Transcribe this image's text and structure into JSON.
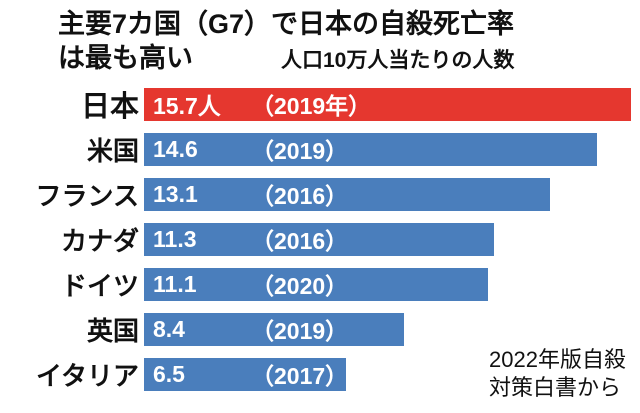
{
  "header": {
    "title_line1": "主要7カ国（G7）で日本の自殺死亡率",
    "title_line2": "は最も高い",
    "subtitle": "人口10万人当たりの人数"
  },
  "source": {
    "line1": "2022年版自殺",
    "line2": "対策白書から"
  },
  "colors": {
    "highlight": "#e5372f",
    "bar": "#4a7ebc",
    "bar_text": "#ffffff",
    "text": "#111111",
    "background": "#ffffff"
  },
  "chart_data": {
    "type": "bar",
    "orientation": "horizontal",
    "title": "主要7カ国（G7）で日本の自殺死亡率は最も高い",
    "unit_note": "人口10万人当たりの人数",
    "categories": [
      "日本",
      "米国",
      "フランス",
      "カナダ",
      "ドイツ",
      "英国",
      "イタリア"
    ],
    "values": [
      15.7,
      14.6,
      13.1,
      11.3,
      11.1,
      8.4,
      6.5
    ],
    "value_labels": [
      "15.7人",
      "14.6",
      "13.1",
      "11.3",
      "11.1",
      "8.4",
      "6.5"
    ],
    "year_labels": [
      "（2019年）",
      "（2019）",
      "（2016）",
      "（2016）",
      "（2020）",
      "（2019）",
      "（2017）"
    ],
    "years": [
      2019,
      2019,
      2016,
      2016,
      2020,
      2019,
      2017
    ],
    "xlim": [
      0,
      16
    ],
    "highlight_index": 0,
    "legend": "none",
    "grid": false,
    "source": "2022年版自殺対策白書から"
  }
}
